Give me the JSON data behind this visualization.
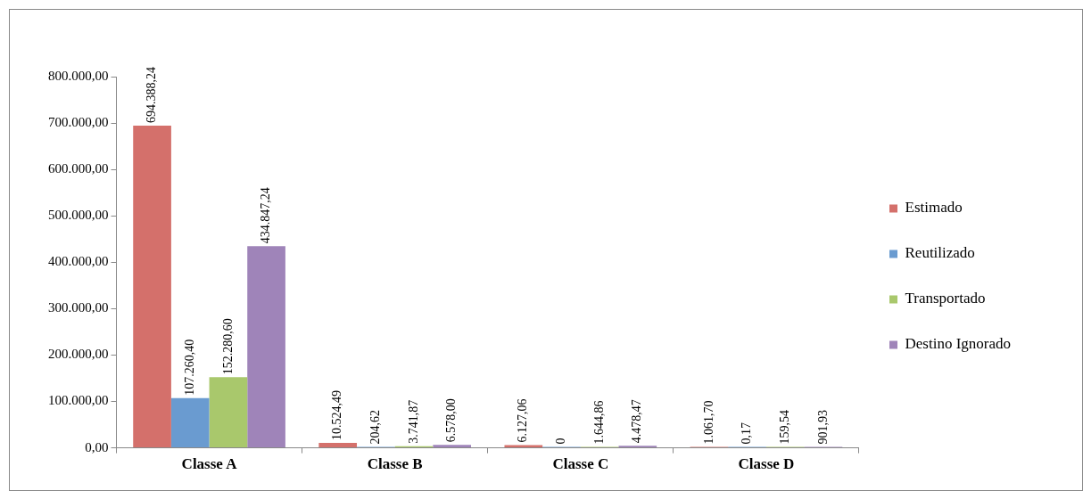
{
  "chart_data": {
    "type": "bar",
    "categories": [
      "Classe A",
      "Classe B",
      "Classe C",
      "Classe D"
    ],
    "series": [
      {
        "name": "Estimado",
        "color": "#d4706b",
        "values": [
          694388.24,
          10524.49,
          6127.06,
          1061.7
        ],
        "value_labels": [
          "694.388,24",
          "10.524,49",
          "6.127,06",
          "1.061,70"
        ]
      },
      {
        "name": "Reutilizado",
        "color": "#6a9bd0",
        "values": [
          107260.4,
          204.62,
          0,
          0.17
        ],
        "value_labels": [
          "107.260,40",
          "204,62",
          "0",
          "0,17"
        ]
      },
      {
        "name": "Transportado",
        "color": "#a9c86c",
        "values": [
          152280.6,
          3741.87,
          1644.86,
          159.54
        ],
        "value_labels": [
          "152.280,60",
          "3.741,87",
          "1.644,86",
          "159,54"
        ]
      },
      {
        "name": "Destino Ignorado",
        "color": "#9f84b9",
        "values": [
          434847.24,
          6578.0,
          4478.47,
          901.93
        ],
        "value_labels": [
          "434.847,24",
          "6.578,00",
          "4.478,47",
          "901,93"
        ]
      }
    ],
    "ylim": [
      0,
      800000
    ],
    "yticks": [
      {
        "value": 0,
        "label": "0,00"
      },
      {
        "value": 100000,
        "label": "100.000,00"
      },
      {
        "value": 200000,
        "label": "200.000,00"
      },
      {
        "value": 300000,
        "label": "300.000,00"
      },
      {
        "value": 400000,
        "label": "400.000,00"
      },
      {
        "value": 500000,
        "label": "500.000,00"
      },
      {
        "value": 600000,
        "label": "600.000,00"
      },
      {
        "value": 700000,
        "label": "700.000,00"
      },
      {
        "value": 800000,
        "label": "800.000,00"
      }
    ],
    "grid": false,
    "legend": "right"
  }
}
